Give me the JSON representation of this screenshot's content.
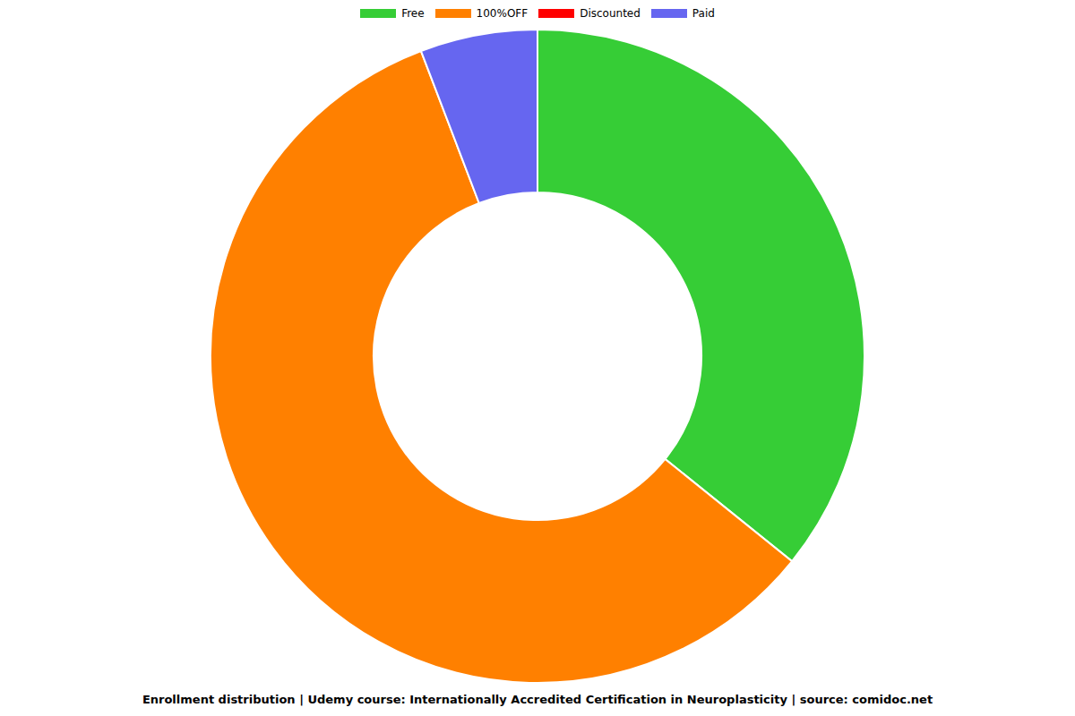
{
  "chart_data": {
    "type": "pie",
    "title": "Enrollment distribution | Udemy course: Internationally Accredited Certification in Neuroplasticity | source: comidoc.net",
    "categories": [
      "Free",
      "100%OFF",
      "Discounted",
      "Paid"
    ],
    "values": [
      35.8,
      58.4,
      0,
      5.8
    ],
    "colors": [
      "#36cd36",
      "#ff8000",
      "#ff0000",
      "#6666f0"
    ],
    "legend": "top"
  }
}
